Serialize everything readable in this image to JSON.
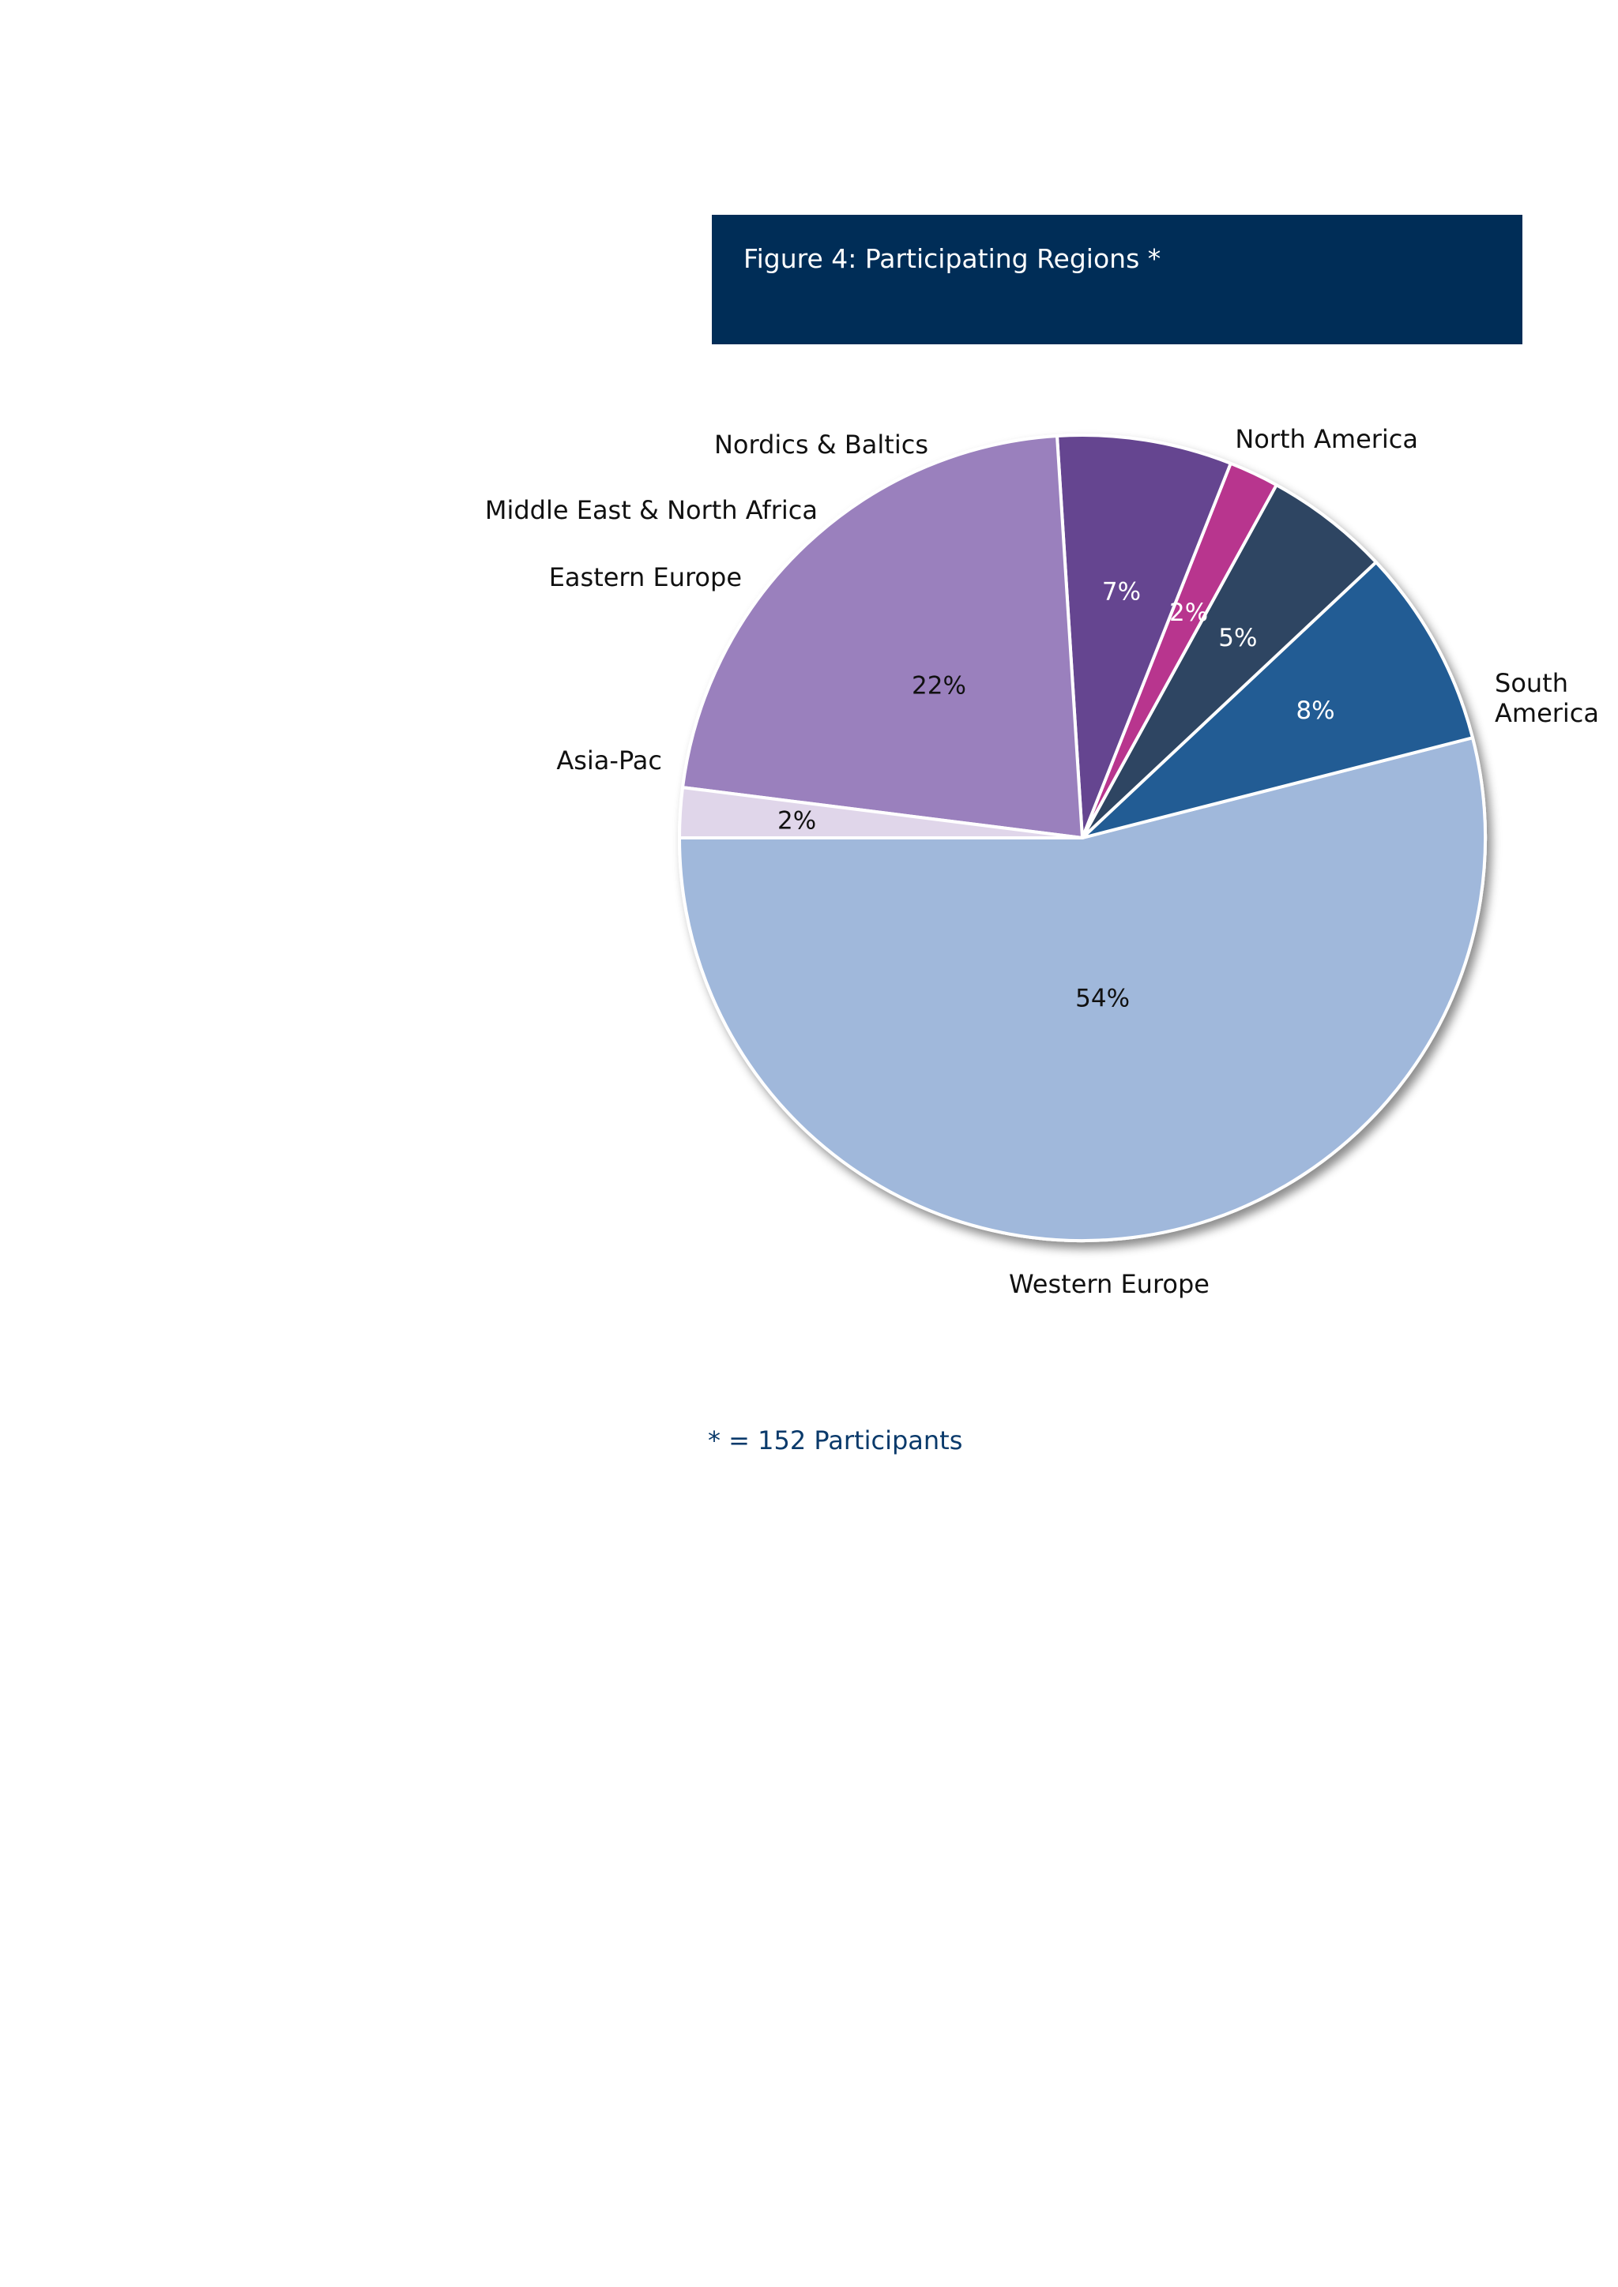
{
  "chart_data": {
    "type": "pie",
    "title": "Figure 4: Participating Regions *",
    "footnote": "* = 152 Participants",
    "slices": [
      {
        "label": "Western Europe",
        "value": 54,
        "value_label": "54%",
        "color": "#a0b8db",
        "text_color": "#111111"
      },
      {
        "label": "Asia-Pac",
        "value": 8,
        "value_label": "8%",
        "color": "#225c94",
        "text_color": "#ffffff"
      },
      {
        "label": "Eastern Europe",
        "value": 5,
        "value_label": "5%",
        "color": "#2d4462",
        "text_color": "#ffffff"
      },
      {
        "label": "Middle East & North Africa",
        "value": 2,
        "value_label": "2%",
        "color": "#b8358e",
        "text_color": "#ffffff"
      },
      {
        "label": "Nordics & Baltics",
        "value": 7,
        "value_label": "7%",
        "color": "#654590",
        "text_color": "#ffffff"
      },
      {
        "label": "North America",
        "value": 22,
        "value_label": "22%",
        "color": "#9a80bd",
        "text_color": "#111111"
      },
      {
        "label": "South America",
        "value": 2,
        "value_label": "2%",
        "color": "#e0d6ea",
        "text_color": "#111111"
      }
    ]
  }
}
